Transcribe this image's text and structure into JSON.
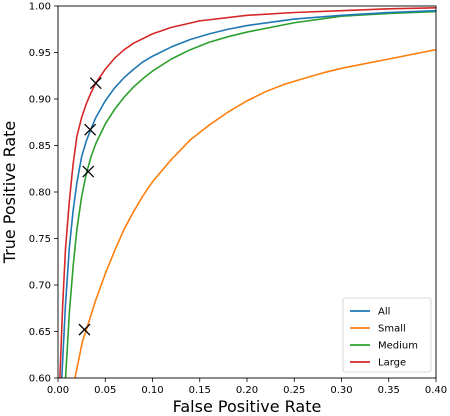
{
  "chart_data": {
    "type": "line",
    "title": "",
    "xlabel": "False Positive Rate",
    "ylabel": "True Positive Rate",
    "xlim": [
      0.0,
      0.4
    ],
    "ylim": [
      0.6,
      1.0
    ],
    "x_ticks": [
      "0.00",
      "0.05",
      "0.10",
      "0.15",
      "0.20",
      "0.25",
      "0.30",
      "0.35",
      "0.40"
    ],
    "y_ticks": [
      "0.60",
      "0.65",
      "0.70",
      "0.75",
      "0.80",
      "0.85",
      "0.90",
      "0.95",
      "1.00"
    ],
    "grid": false,
    "legend": {
      "position": "lower-right"
    },
    "series": [
      {
        "name": "All",
        "color": "#1f77b4",
        "x": [
          0.004,
          0.008,
          0.012,
          0.016,
          0.02,
          0.025,
          0.03,
          0.035,
          0.04,
          0.05,
          0.06,
          0.07,
          0.08,
          0.09,
          0.1,
          0.12,
          0.14,
          0.16,
          0.18,
          0.2,
          0.25,
          0.3,
          0.35,
          0.4
        ],
        "y": [
          0.6,
          0.68,
          0.74,
          0.78,
          0.81,
          0.838,
          0.855,
          0.868,
          0.88,
          0.898,
          0.912,
          0.923,
          0.932,
          0.94,
          0.946,
          0.956,
          0.964,
          0.97,
          0.975,
          0.979,
          0.986,
          0.99,
          0.993,
          0.995
        ],
        "marker": {
          "x": 0.034,
          "y": 0.867
        }
      },
      {
        "name": "Small",
        "color": "#ff7f0e",
        "x": [
          0.018,
          0.022,
          0.026,
          0.03,
          0.035,
          0.04,
          0.045,
          0.05,
          0.06,
          0.07,
          0.08,
          0.09,
          0.1,
          0.12,
          0.14,
          0.16,
          0.18,
          0.2,
          0.22,
          0.24,
          0.26,
          0.28,
          0.3,
          0.35,
          0.4
        ],
        "y": [
          0.6,
          0.62,
          0.64,
          0.652,
          0.668,
          0.684,
          0.698,
          0.712,
          0.737,
          0.76,
          0.779,
          0.796,
          0.811,
          0.835,
          0.856,
          0.872,
          0.886,
          0.898,
          0.908,
          0.916,
          0.922,
          0.928,
          0.933,
          0.943,
          0.953
        ],
        "marker": {
          "x": 0.028,
          "y": 0.652
        }
      },
      {
        "name": "Medium",
        "color": "#2ca02c",
        "x": [
          0.008,
          0.012,
          0.016,
          0.02,
          0.025,
          0.03,
          0.035,
          0.04,
          0.05,
          0.06,
          0.07,
          0.08,
          0.09,
          0.1,
          0.12,
          0.14,
          0.16,
          0.18,
          0.2,
          0.25,
          0.3,
          0.35,
          0.4
        ],
        "y": [
          0.6,
          0.67,
          0.72,
          0.76,
          0.795,
          0.82,
          0.838,
          0.852,
          0.873,
          0.889,
          0.902,
          0.913,
          0.922,
          0.93,
          0.943,
          0.953,
          0.961,
          0.967,
          0.972,
          0.982,
          0.989,
          0.992,
          0.994
        ],
        "marker": {
          "x": 0.032,
          "y": 0.822
        }
      },
      {
        "name": "Large",
        "color": "#d62728",
        "x": [
          0.002,
          0.005,
          0.008,
          0.012,
          0.016,
          0.02,
          0.025,
          0.03,
          0.035,
          0.04,
          0.05,
          0.06,
          0.07,
          0.08,
          0.1,
          0.12,
          0.15,
          0.2,
          0.25,
          0.3,
          0.35,
          0.4
        ],
        "y": [
          0.6,
          0.68,
          0.74,
          0.79,
          0.83,
          0.86,
          0.88,
          0.895,
          0.907,
          0.917,
          0.932,
          0.944,
          0.953,
          0.96,
          0.97,
          0.977,
          0.984,
          0.99,
          0.993,
          0.995,
          0.997,
          0.998
        ],
        "marker": {
          "x": 0.04,
          "y": 0.917
        }
      }
    ]
  }
}
